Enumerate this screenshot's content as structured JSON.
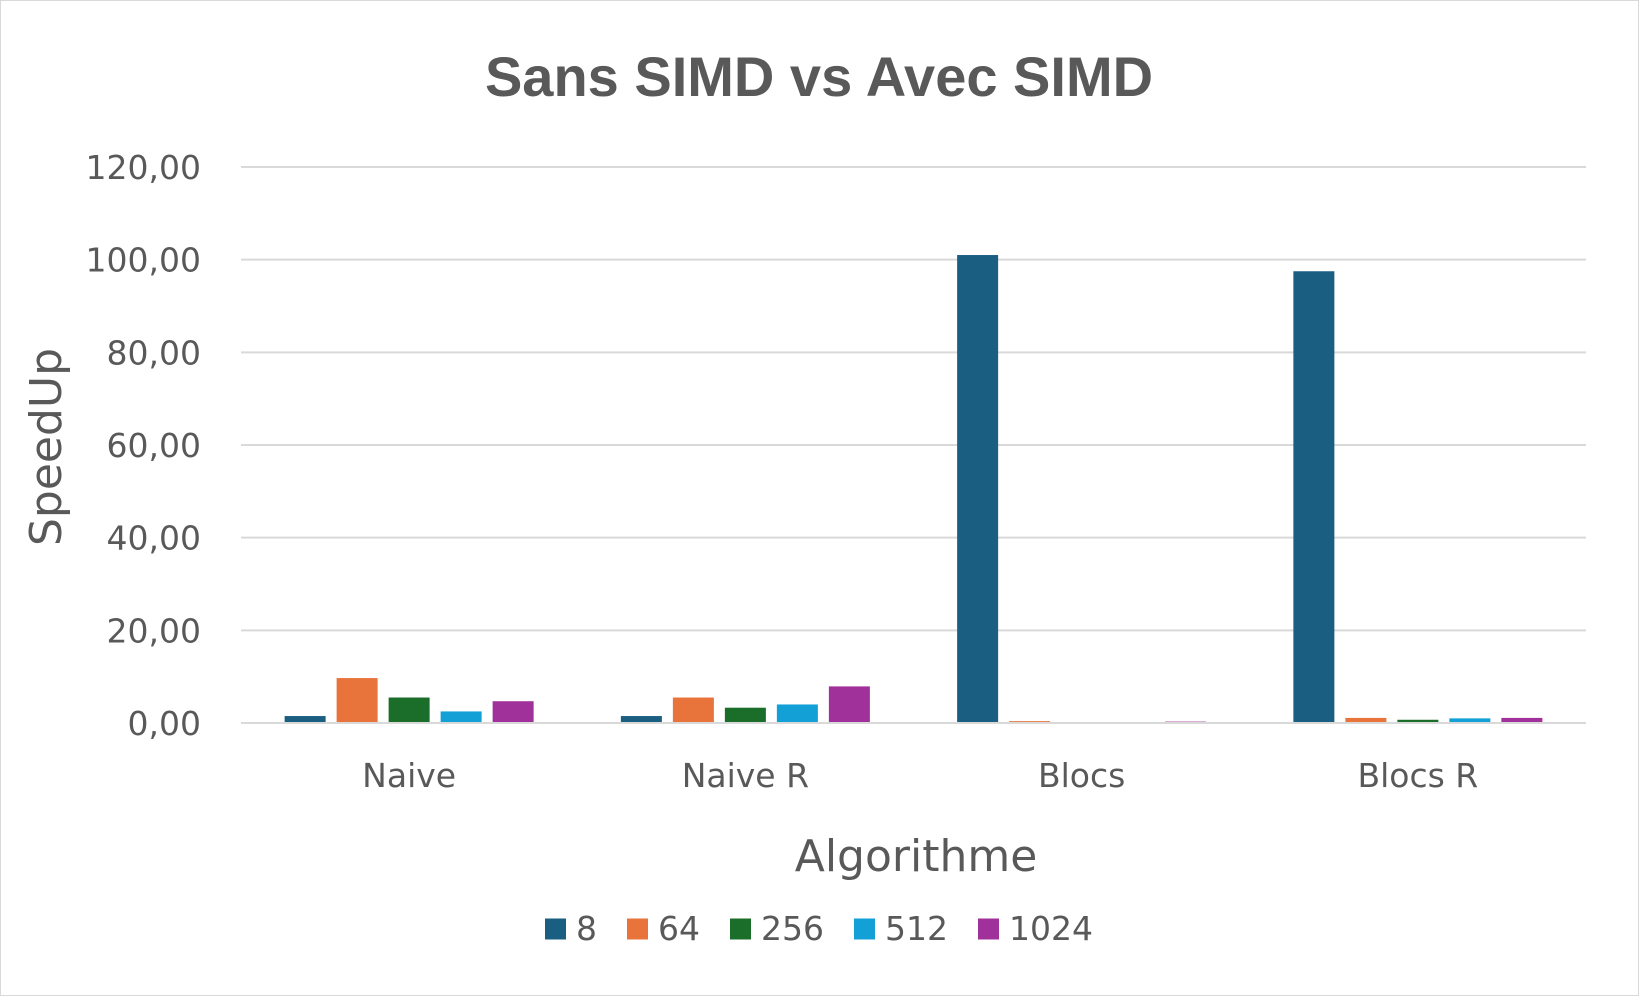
{
  "chart_data": {
    "type": "bar",
    "title": "Sans SIMD vs Avec SIMD",
    "xlabel": "Algorithme",
    "ylabel": "SpeedUp",
    "categories": [
      "Naive",
      "Naive R",
      "Blocs",
      "Blocs R"
    ],
    "ylim": [
      0,
      120
    ],
    "yticks": [
      0,
      20,
      40,
      60,
      80,
      100,
      120
    ],
    "ytick_labels": [
      "0,00",
      "20,00",
      "40,00",
      "60,00",
      "80,00",
      "100,00",
      "120,00"
    ],
    "grid": true,
    "legend_position": "bottom",
    "series": [
      {
        "name": "8",
        "color": "#1a5e82",
        "values": [
          1.5,
          1.5,
          101.0,
          97.5
        ]
      },
      {
        "name": "64",
        "color": "#e8743b",
        "values": [
          9.7,
          5.5,
          0.4,
          1.1
        ]
      },
      {
        "name": "256",
        "color": "#1b6e2a",
        "values": [
          5.5,
          3.3,
          0.2,
          0.7
        ]
      },
      {
        "name": "512",
        "color": "#12a0d7",
        "values": [
          2.5,
          4.0,
          0.2,
          1.0
        ]
      },
      {
        "name": "1024",
        "color": "#a0309a",
        "values": [
          4.7,
          7.9,
          0.3,
          1.1
        ]
      }
    ]
  }
}
